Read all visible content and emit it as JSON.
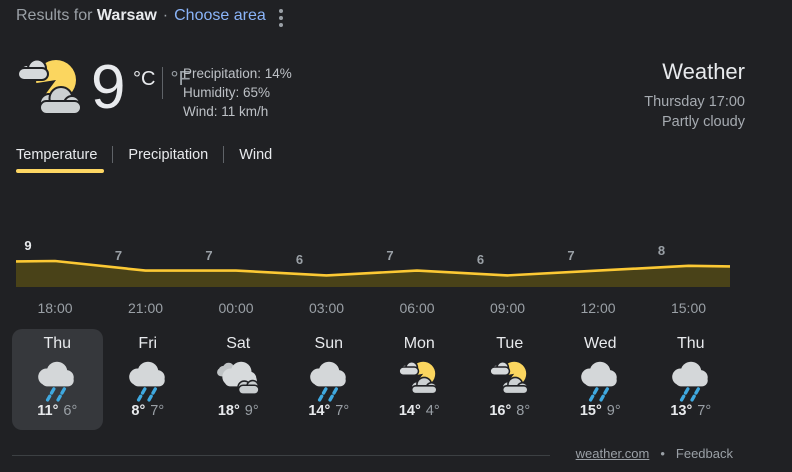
{
  "topbar": {
    "results_for": "Results for ",
    "location": "Warsaw",
    "separator": "·",
    "choose_area": "Choose area"
  },
  "current": {
    "temp": "9",
    "unit_c": "°C",
    "unit_f": "°F",
    "condition_icon": "partly-cloudy-icon",
    "stats": [
      {
        "text": "Precipitation: 14%"
      },
      {
        "text": "Humidity: 65%"
      },
      {
        "text": "Wind: 11 km/h"
      }
    ]
  },
  "header": {
    "title": "Weather",
    "datetime": "Thursday 17:00",
    "condition": "Partly cloudy"
  },
  "tabs": [
    {
      "label": "Temperature",
      "active": true
    },
    {
      "label": "Precipitation",
      "active": false
    },
    {
      "label": "Wind",
      "active": false
    }
  ],
  "chart_data": {
    "type": "area",
    "title": "Temperature",
    "x": [
      "18:00",
      "21:00",
      "00:00",
      "03:00",
      "06:00",
      "09:00",
      "12:00",
      "15:00"
    ],
    "values": [
      9,
      7,
      7,
      6,
      7,
      6,
      7,
      8
    ],
    "unit": "°C",
    "ylim": [
      5,
      10
    ],
    "grid": false,
    "legend": "none",
    "line_color": "#fcc934",
    "fill_color": "#494218",
    "label_color_first": "#e8eaed",
    "label_color": "#9aa0a6"
  },
  "daily": [
    {
      "day": "Thu",
      "icon": "rain-icon",
      "icon_ref": "#i-rain",
      "high": "11°",
      "low": "6°",
      "selected": true
    },
    {
      "day": "Fri",
      "icon": "rain-icon",
      "icon_ref": "#i-rain",
      "high": "8°",
      "low": "7°",
      "selected": false
    },
    {
      "day": "Sat",
      "icon": "cloudy-icon",
      "icon_ref": "#i-cloudy",
      "high": "18°",
      "low": "9°",
      "selected": false
    },
    {
      "day": "Sun",
      "icon": "rain-icon",
      "icon_ref": "#i-rain",
      "high": "14°",
      "low": "7°",
      "selected": false
    },
    {
      "day": "Mon",
      "icon": "partly-cloudy-icon",
      "icon_ref": "#i-partly",
      "high": "14°",
      "low": "4°",
      "selected": false
    },
    {
      "day": "Tue",
      "icon": "partly-cloudy-icon",
      "icon_ref": "#i-partly",
      "high": "16°",
      "low": "8°",
      "selected": false
    },
    {
      "day": "Wed",
      "icon": "rain-icon",
      "icon_ref": "#i-rain",
      "high": "15°",
      "low": "9°",
      "selected": false
    },
    {
      "day": "Thu",
      "icon": "rain-icon",
      "icon_ref": "#i-rain",
      "high": "13°",
      "low": "7°",
      "selected": false
    }
  ],
  "footer": {
    "source": "weather.com",
    "bullet": "•",
    "feedback": "Feedback"
  },
  "colors": {
    "background": "#202124",
    "text_primary": "#e8eaed",
    "text_secondary": "#9aa0a6",
    "link_blue": "#8ab4f8",
    "accent_yellow": "#fdd663",
    "chart_line": "#fcc934",
    "chart_fill": "#494218",
    "rain_blue": "#3fa9e0",
    "selected_cell": "#36383c"
  }
}
